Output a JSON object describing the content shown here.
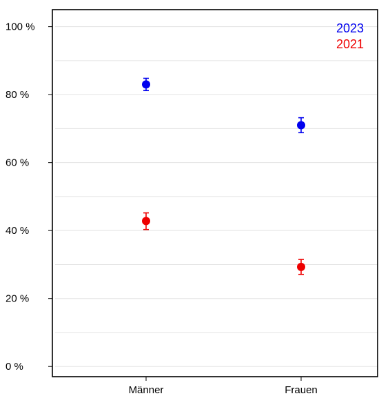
{
  "chart_data": {
    "type": "scatter",
    "title": "",
    "xlabel": "",
    "ylabel": "",
    "categories": [
      "Männer",
      "Frauen"
    ],
    "ylim": [
      -3,
      105
    ],
    "y_ticks": [
      {
        "value": 0,
        "label": "0 %"
      },
      {
        "value": 20,
        "label": "20 %"
      },
      {
        "value": 40,
        "label": "40 %"
      },
      {
        "value": 60,
        "label": "60 %"
      },
      {
        "value": 80,
        "label": "80 %"
      },
      {
        "value": 100,
        "label": "100 %"
      }
    ],
    "grid": true,
    "grid_minor": [
      10,
      30,
      50,
      70,
      90
    ],
    "legend_position": "top-right",
    "series": [
      {
        "name": "2023",
        "color": "#0000ee",
        "values": [
          83,
          71
        ],
        "error_low": [
          81.2,
          68.8
        ],
        "error_high": [
          84.8,
          73.2
        ]
      },
      {
        "name": "2021",
        "color": "#ee0000",
        "values": [
          42.8,
          29.3
        ],
        "error_low": [
          40.3,
          27.1
        ],
        "error_high": [
          45.2,
          31.5
        ]
      }
    ]
  }
}
